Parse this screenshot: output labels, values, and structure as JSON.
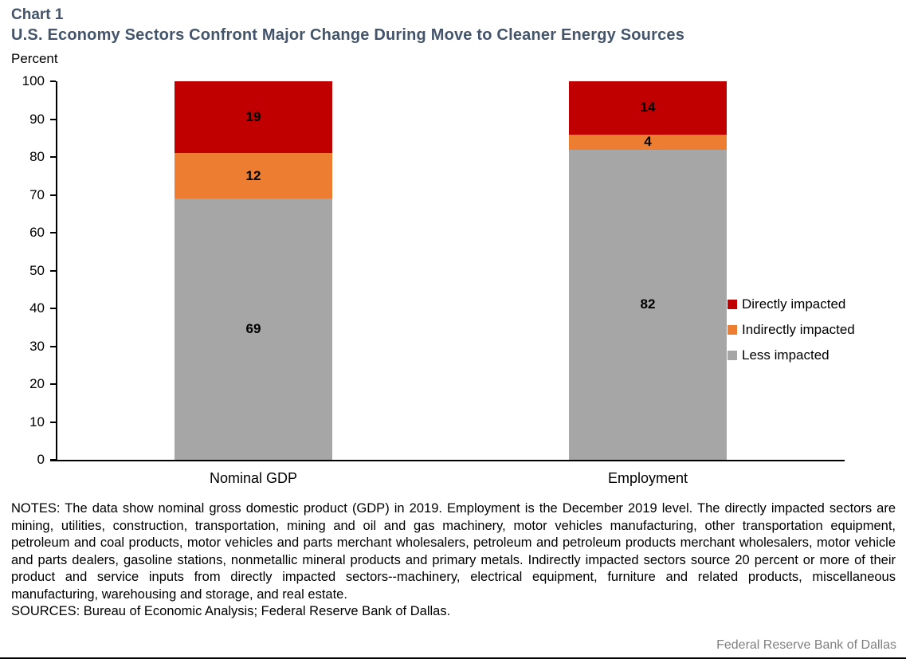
{
  "chart_data": {
    "type": "bar",
    "stacked": true,
    "chart_label": "Chart 1",
    "title": "U.S. Economy Sectors Confront Major Change During Move to Cleaner Energy Sources",
    "ylabel": "Percent",
    "xlabel": "",
    "ylim": [
      0,
      100
    ],
    "ytick_step": 10,
    "grid": false,
    "legend_position": "right",
    "categories": [
      "Nominal GDP",
      "Employment"
    ],
    "series": [
      {
        "name": "Directly impacted",
        "color": "#C00000",
        "values": [
          19,
          14
        ]
      },
      {
        "name": "Indirectly impacted",
        "color": "#ED7D31",
        "values": [
          12,
          4
        ]
      },
      {
        "name": "Less impacted",
        "color": "#A6A6A6",
        "values": [
          69,
          82
        ]
      }
    ]
  },
  "notes": "NOTES: The data show nominal gross domestic product (GDP) in 2019. Employment is the December 2019 level. The directly impacted sectors are mining, utilities, construction, transportation, mining and oil and gas machinery, motor vehicles manufacturing, other transportation equipment, petroleum and coal products, motor vehicles and parts merchant wholesalers, petroleum and petroleum products merchant wholesalers, motor vehicle and parts dealers, gasoline stations, nonmetallic mineral products and primary metals. Indirectly impacted sectors source 20 percent or more of their product and service inputs from directly impacted sectors--machinery, electrical equipment, furniture and related products, miscellaneous manufacturing, warehousing and storage, and real estate.",
  "sources": "SOURCES: Bureau of Economic Analysis; Federal Reserve Bank of Dallas.",
  "footer": {
    "brand": "Federal Reserve Bank of Dallas"
  }
}
